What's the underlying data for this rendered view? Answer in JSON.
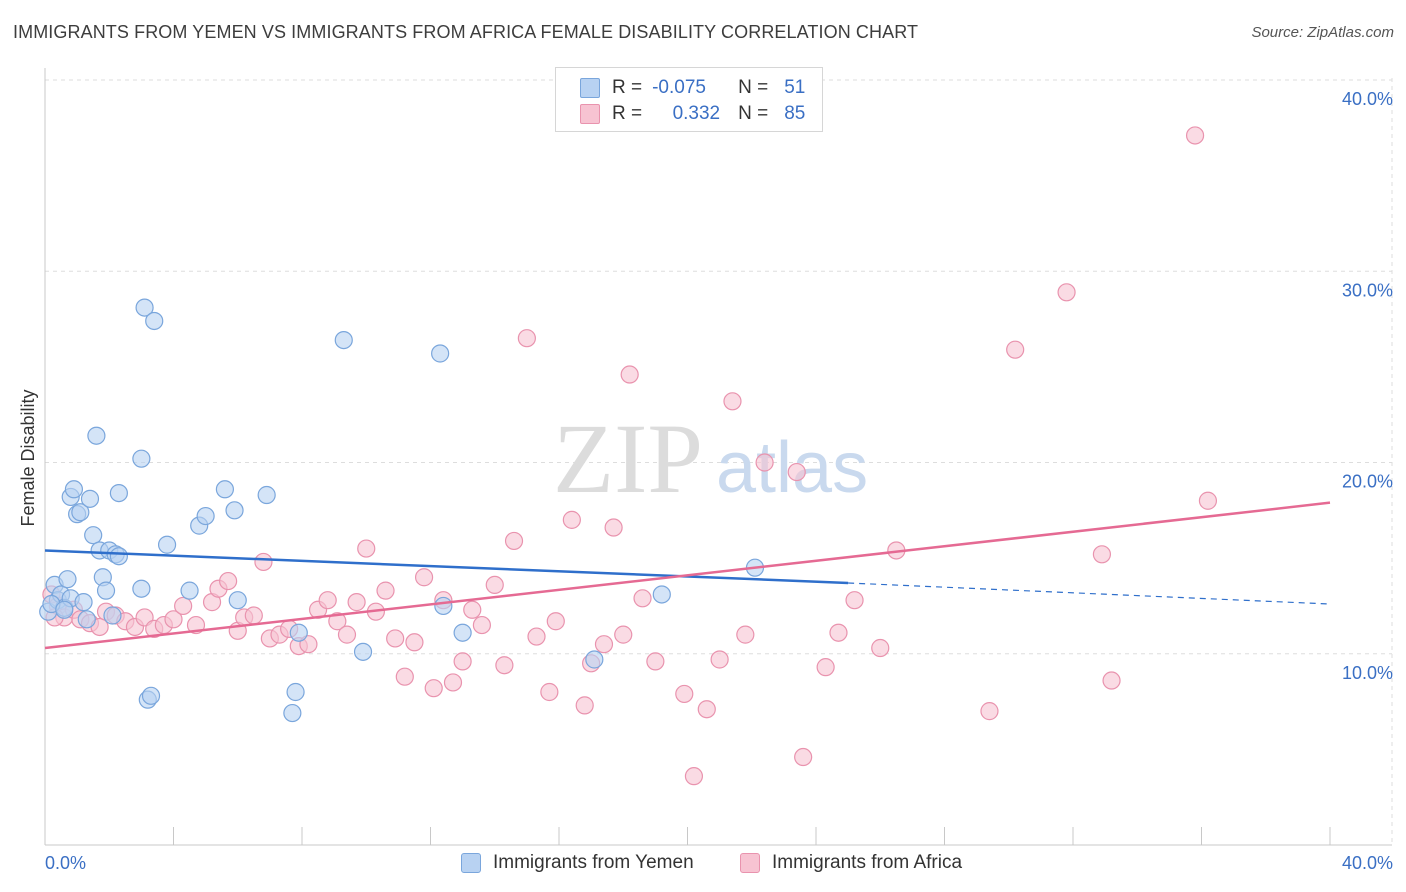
{
  "header": {
    "title": "IMMIGRANTS FROM YEMEN VS IMMIGRANTS FROM AFRICA FEMALE DISABILITY CORRELATION CHART",
    "source": "Source: ZipAtlas.com"
  },
  "watermark": {
    "zip": "ZIP",
    "atlas": "atlas"
  },
  "legend": {
    "rows": [
      {
        "r_label": "R =",
        "r_value": "-0.075",
        "n_label": "N =",
        "n_value": "51"
      },
      {
        "r_label": "R =",
        "r_value": "0.332",
        "n_label": "N =",
        "n_value": "85"
      }
    ]
  },
  "colors": {
    "yemen_fill": "#b8d2f2",
    "yemen_stroke": "#7aa6dc",
    "yemen_line": "#2f6fcb",
    "africa_fill": "#f7c3d2",
    "africa_stroke": "#e993ae",
    "africa_line": "#e56a93",
    "value_text": "#3a6fc4",
    "grid": "#dddddd"
  },
  "chart_data": {
    "type": "scatter",
    "title": "IMMIGRANTS FROM YEMEN VS IMMIGRANTS FROM AFRICA FEMALE DISABILITY CORRELATION CHART",
    "xlabel": "",
    "ylabel": "Female Disability",
    "xlim": [
      0,
      40
    ],
    "ylim": [
      0,
      40
    ],
    "x_tick_labels": [
      "0.0%",
      "40.0%"
    ],
    "y_tick_labels": [
      "10.0%",
      "20.0%",
      "30.0%",
      "40.0%"
    ],
    "y_ticks": [
      10,
      20,
      30,
      40
    ],
    "grid": true,
    "series": [
      {
        "name": "Immigrants from Yemen",
        "r": -0.075,
        "n": 51,
        "trend": {
          "x0": 0,
          "y0": 15.4,
          "x1": 25,
          "y1": 13.7,
          "dash_x1": 40,
          "dash_y1": 12.6
        },
        "points": [
          [
            0.1,
            12.2
          ],
          [
            0.3,
            13.6
          ],
          [
            0.4,
            12.8
          ],
          [
            0.5,
            13.1
          ],
          [
            0.6,
            12.4
          ],
          [
            0.7,
            13.9
          ],
          [
            0.8,
            12.9
          ],
          [
            0.8,
            18.2
          ],
          [
            0.9,
            18.6
          ],
          [
            1.0,
            17.3
          ],
          [
            1.1,
            17.4
          ],
          [
            1.2,
            12.7
          ],
          [
            1.3,
            11.8
          ],
          [
            1.4,
            18.1
          ],
          [
            1.5,
            16.2
          ],
          [
            1.6,
            21.4
          ],
          [
            1.7,
            15.4
          ],
          [
            1.8,
            14.0
          ],
          [
            1.9,
            13.3
          ],
          [
            2.0,
            15.4
          ],
          [
            2.1,
            12.0
          ],
          [
            2.2,
            15.2
          ],
          [
            2.3,
            15.1
          ],
          [
            2.3,
            18.4
          ],
          [
            3.0,
            13.4
          ],
          [
            3.0,
            20.2
          ],
          [
            3.1,
            28.1
          ],
          [
            3.2,
            7.6
          ],
          [
            3.3,
            7.8
          ],
          [
            3.4,
            27.4
          ],
          [
            3.8,
            15.7
          ],
          [
            4.5,
            13.3
          ],
          [
            4.8,
            16.7
          ],
          [
            5.0,
            17.2
          ],
          [
            5.6,
            18.6
          ],
          [
            5.9,
            17.5
          ],
          [
            6.0,
            12.8
          ],
          [
            6.9,
            18.3
          ],
          [
            7.7,
            6.9
          ],
          [
            7.8,
            8.0
          ],
          [
            7.9,
            11.1
          ],
          [
            9.3,
            26.4
          ],
          [
            9.9,
            10.1
          ],
          [
            12.3,
            25.7
          ],
          [
            12.4,
            12.5
          ],
          [
            13.0,
            11.1
          ],
          [
            17.1,
            9.7
          ],
          [
            19.2,
            13.1
          ],
          [
            22.1,
            14.5
          ],
          [
            0.2,
            12.6
          ],
          [
            0.6,
            12.3
          ]
        ]
      },
      {
        "name": "Immigrants from Africa",
        "r": 0.332,
        "n": 85,
        "trend": {
          "x0": 0,
          "y0": 10.3,
          "x1": 40,
          "y1": 17.9
        },
        "points": [
          [
            0.2,
            13.1
          ],
          [
            0.4,
            12.5
          ],
          [
            0.6,
            11.9
          ],
          [
            0.9,
            12.3
          ],
          [
            1.1,
            11.8
          ],
          [
            1.4,
            11.6
          ],
          [
            1.7,
            11.4
          ],
          [
            1.9,
            12.2
          ],
          [
            2.2,
            12.0
          ],
          [
            2.5,
            11.7
          ],
          [
            2.8,
            11.4
          ],
          [
            3.1,
            11.9
          ],
          [
            3.4,
            11.3
          ],
          [
            3.7,
            11.5
          ],
          [
            4.0,
            11.8
          ],
          [
            4.3,
            12.5
          ],
          [
            4.7,
            11.5
          ],
          [
            5.2,
            12.7
          ],
          [
            5.4,
            13.4
          ],
          [
            5.7,
            13.8
          ],
          [
            6.0,
            11.2
          ],
          [
            6.2,
            11.9
          ],
          [
            6.5,
            12.0
          ],
          [
            6.8,
            14.8
          ],
          [
            7.0,
            10.8
          ],
          [
            7.3,
            11.0
          ],
          [
            7.6,
            11.3
          ],
          [
            7.9,
            10.4
          ],
          [
            8.2,
            10.5
          ],
          [
            8.5,
            12.3
          ],
          [
            8.8,
            12.8
          ],
          [
            9.1,
            11.7
          ],
          [
            9.4,
            11.0
          ],
          [
            9.7,
            12.7
          ],
          [
            10.0,
            15.5
          ],
          [
            10.3,
            12.2
          ],
          [
            10.6,
            13.3
          ],
          [
            10.9,
            10.8
          ],
          [
            11.2,
            8.8
          ],
          [
            11.5,
            10.6
          ],
          [
            11.8,
            14.0
          ],
          [
            12.1,
            8.2
          ],
          [
            12.4,
            12.8
          ],
          [
            12.7,
            8.5
          ],
          [
            13.0,
            9.6
          ],
          [
            13.3,
            12.3
          ],
          [
            13.6,
            11.5
          ],
          [
            14.0,
            13.6
          ],
          [
            14.3,
            9.4
          ],
          [
            14.6,
            15.9
          ],
          [
            15.0,
            26.5
          ],
          [
            15.3,
            10.9
          ],
          [
            15.7,
            8.0
          ],
          [
            15.9,
            11.7
          ],
          [
            16.4,
            17.0
          ],
          [
            16.8,
            7.3
          ],
          [
            17.0,
            9.5
          ],
          [
            17.4,
            10.5
          ],
          [
            17.7,
            16.6
          ],
          [
            18.0,
            11.0
          ],
          [
            18.2,
            24.6
          ],
          [
            18.6,
            12.9
          ],
          [
            19.0,
            9.6
          ],
          [
            19.9,
            7.9
          ],
          [
            20.2,
            3.6
          ],
          [
            20.6,
            7.1
          ],
          [
            21.0,
            9.7
          ],
          [
            21.4,
            23.2
          ],
          [
            21.8,
            11.0
          ],
          [
            22.4,
            20.0
          ],
          [
            23.4,
            19.5
          ],
          [
            23.6,
            4.6
          ],
          [
            24.3,
            9.3
          ],
          [
            24.7,
            11.1
          ],
          [
            25.2,
            12.8
          ],
          [
            26.0,
            10.3
          ],
          [
            26.5,
            15.4
          ],
          [
            29.4,
            7.0
          ],
          [
            30.2,
            25.9
          ],
          [
            31.8,
            28.9
          ],
          [
            32.9,
            15.2
          ],
          [
            33.2,
            8.6
          ],
          [
            35.8,
            37.1
          ],
          [
            36.2,
            18.0
          ],
          [
            0.3,
            11.9
          ]
        ]
      }
    ]
  }
}
